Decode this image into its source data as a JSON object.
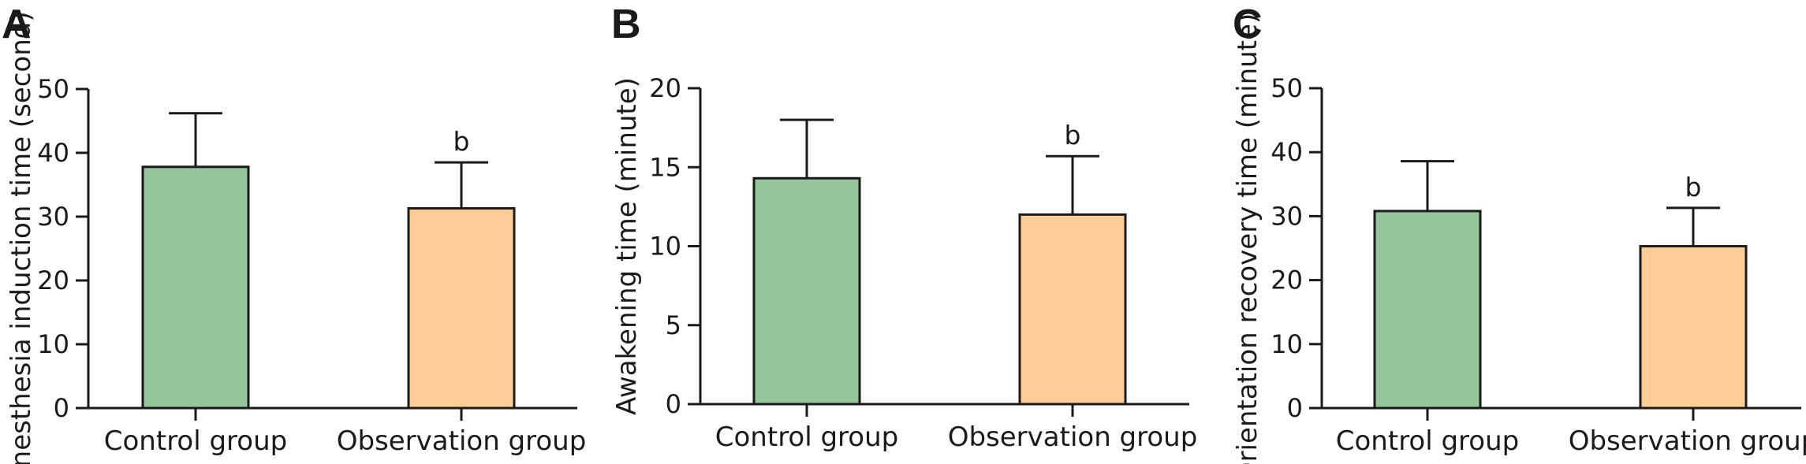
{
  "colors": {
    "control": "#93c69a",
    "observation": "#fecd97",
    "stroke": "#1a1a1a"
  },
  "chart_data": [
    {
      "type": "bar",
      "panel": "A",
      "categories": [
        "Control group",
        "Observation group"
      ],
      "values": [
        37.8,
        31.3
      ],
      "errors": [
        8.4,
        7.2
      ],
      "annotations": [
        "",
        "b"
      ],
      "ylabel": "Anesthesia induction time (second)",
      "ylim": [
        0,
        50
      ],
      "yticks": [
        "0",
        "10",
        "20",
        "30",
        "40",
        "50"
      ]
    },
    {
      "type": "bar",
      "panel": "B",
      "categories": [
        "Control group",
        "Observation group"
      ],
      "values": [
        14.3,
        12.0
      ],
      "errors": [
        3.7,
        3.7
      ],
      "annotations": [
        "",
        "b"
      ],
      "ylabel": "Awakening time (minute)",
      "ylim": [
        0,
        20
      ],
      "yticks": [
        "0",
        "5",
        "10",
        "15",
        "20"
      ]
    },
    {
      "type": "bar",
      "panel": "C",
      "categories": [
        "Control group",
        "Observation group"
      ],
      "values": [
        30.8,
        25.3
      ],
      "errors": [
        7.8,
        6.0
      ],
      "annotations": [
        "",
        "b"
      ],
      "ylabel": "Orientation recovery time (minute)",
      "ylim": [
        0,
        50
      ],
      "yticks": [
        "0",
        "10",
        "20",
        "30",
        "40",
        "50"
      ]
    }
  ]
}
